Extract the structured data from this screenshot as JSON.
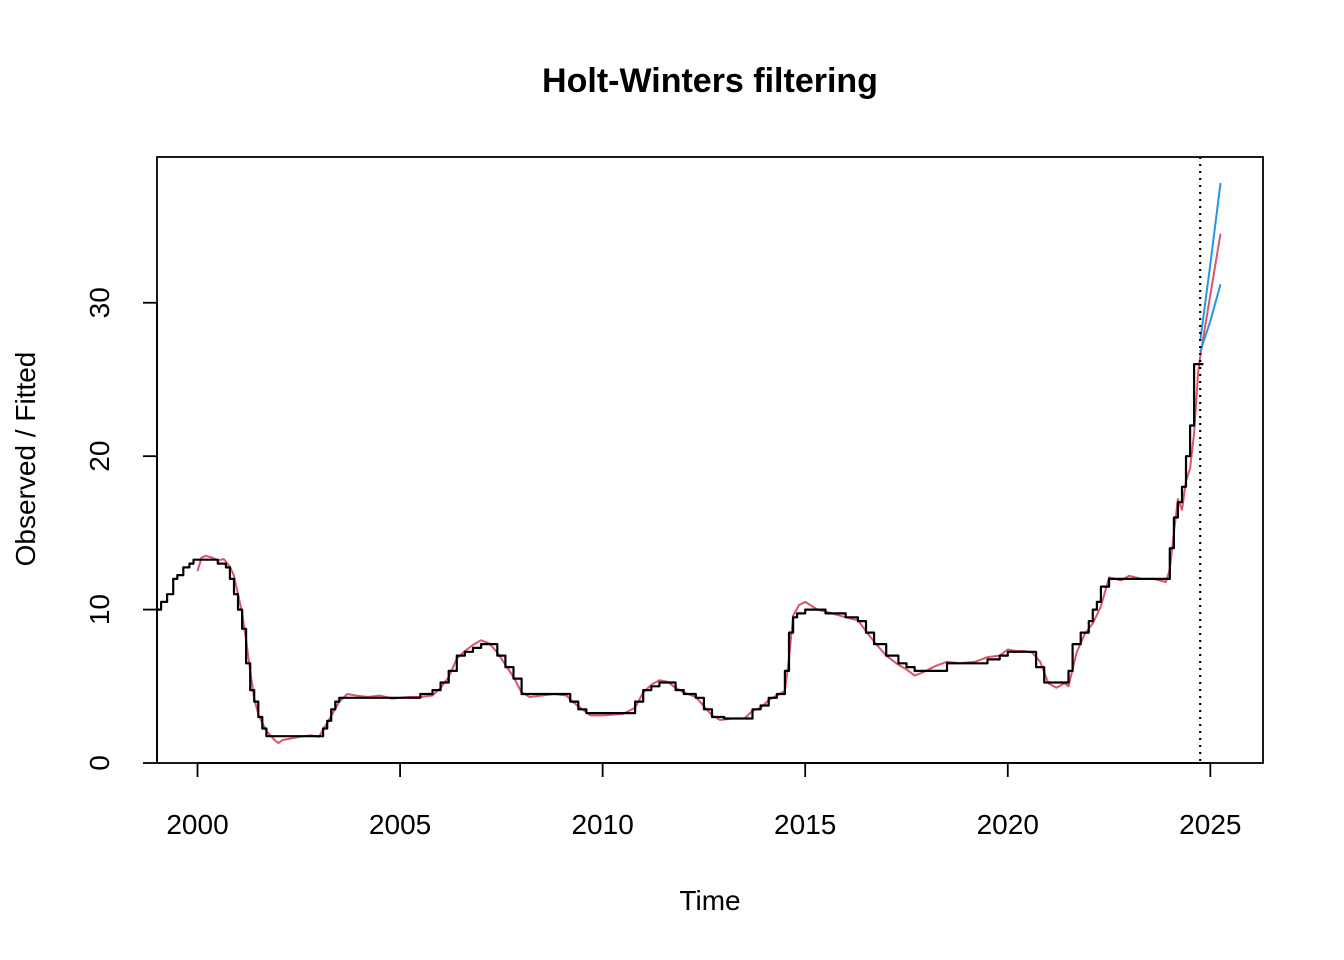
{
  "chart_data": {
    "type": "line",
    "title": "Holt-Winters filtering",
    "xlabel": "Time",
    "ylabel": "Observed / Fitted",
    "xlim": [
      1999,
      2026.3
    ],
    "ylim": [
      0,
      39.5
    ],
    "x_ticks": [
      2000,
      2005,
      2010,
      2015,
      2020,
      2025
    ],
    "x_tick_labels": [
      "2000",
      "2005",
      "2010",
      "2015",
      "2020",
      "2025"
    ],
    "y_ticks": [
      0,
      10,
      20,
      30
    ],
    "y_tick_labels": [
      "0",
      "10",
      "20",
      "30"
    ],
    "grid": false,
    "legend": "none",
    "forecast_start": 2024.75,
    "series": [
      {
        "role": "observed",
        "color": "#000000",
        "step": true,
        "x": [
          1999.0,
          1999.1,
          1999.25,
          1999.4,
          1999.5,
          1999.65,
          1999.8,
          1999.9,
          2000.0,
          2000.3,
          2000.5,
          2000.7,
          2000.8,
          2000.9,
          2001.0,
          2001.1,
          2001.2,
          2001.3,
          2001.4,
          2001.5,
          2001.6,
          2001.7,
          2001.8,
          2001.9,
          2002.0,
          2002.2,
          2002.5,
          2003.0,
          2003.1,
          2003.2,
          2003.3,
          2003.4,
          2003.5,
          2004.0,
          2004.5,
          2005.0,
          2005.5,
          2005.8,
          2006.0,
          2006.2,
          2006.4,
          2006.6,
          2006.8,
          2007.0,
          2007.2,
          2007.4,
          2007.6,
          2007.8,
          2008.0,
          2008.5,
          2009.0,
          2009.2,
          2009.4,
          2009.6,
          2010.0,
          2010.5,
          2010.8,
          2011.0,
          2011.2,
          2011.4,
          2011.6,
          2011.8,
          2012.0,
          2012.3,
          2012.5,
          2012.7,
          2013.0,
          2013.5,
          2013.7,
          2013.9,
          2014.1,
          2014.3,
          2014.5,
          2014.6,
          2014.7,
          2014.8,
          2015.0,
          2015.5,
          2016.0,
          2016.3,
          2016.5,
          2016.7,
          2017.0,
          2017.3,
          2017.5,
          2017.7,
          2018.0,
          2018.5,
          2019.0,
          2019.5,
          2019.8,
          2020.0,
          2020.3,
          2020.5,
          2020.7,
          2020.9,
          2021.2,
          2021.4,
          2021.5,
          2021.6,
          2021.8,
          2022.0,
          2022.1,
          2022.2,
          2022.3,
          2022.5,
          2023.0,
          2023.5,
          2023.9,
          2024.0,
          2024.1,
          2024.2,
          2024.3,
          2024.4,
          2024.5,
          2024.6,
          2024.75
        ],
        "y": [
          10.0,
          10.5,
          11.0,
          12.0,
          12.25,
          12.75,
          13.0,
          13.25,
          13.25,
          13.25,
          13.0,
          12.75,
          12.0,
          11.0,
          10.0,
          8.75,
          6.5,
          4.75,
          4.0,
          3.0,
          2.25,
          1.75,
          1.75,
          1.75,
          1.75,
          1.75,
          1.75,
          1.75,
          2.25,
          2.75,
          3.5,
          4.0,
          4.25,
          4.25,
          4.25,
          4.25,
          4.5,
          4.75,
          5.25,
          6.0,
          7.0,
          7.25,
          7.5,
          7.75,
          7.75,
          7.0,
          6.25,
          5.5,
          4.5,
          4.5,
          4.5,
          4.0,
          3.5,
          3.25,
          3.25,
          3.25,
          4.0,
          4.75,
          5.0,
          5.25,
          5.25,
          4.75,
          4.5,
          4.25,
          3.5,
          3.0,
          2.9,
          2.9,
          3.5,
          3.75,
          4.25,
          4.5,
          6.0,
          8.5,
          9.5,
          9.75,
          10.0,
          9.75,
          9.5,
          9.25,
          8.5,
          7.75,
          7.0,
          6.5,
          6.25,
          6.0,
          6.0,
          6.5,
          6.5,
          6.75,
          7.0,
          7.25,
          7.25,
          7.25,
          6.25,
          5.25,
          5.25,
          5.25,
          6.0,
          7.75,
          8.5,
          9.25,
          10.0,
          10.5,
          11.5,
          12.0,
          12.0,
          12.0,
          12.0,
          14.0,
          16.0,
          17.0,
          18.0,
          20.0,
          22.0,
          26.0,
          26.0
        ]
      },
      {
        "role": "fitted",
        "color": "#DF536B",
        "step": false,
        "x": [
          2000.0,
          2000.1,
          2000.2,
          2000.35,
          2000.5,
          2000.65,
          2000.8,
          2000.9,
          2001.0,
          2001.1,
          2001.2,
          2001.3,
          2001.4,
          2001.5,
          2001.6,
          2001.7,
          2001.8,
          2001.9,
          2002.0,
          2002.1,
          2002.3,
          2002.5,
          2002.8,
          2003.0,
          2003.1,
          2003.2,
          2003.35,
          2003.5,
          2003.7,
          2003.9,
          2004.2,
          2004.5,
          2004.8,
          2005.2,
          2005.5,
          2005.8,
          2006.0,
          2006.2,
          2006.4,
          2006.6,
          2006.8,
          2007.0,
          2007.2,
          2007.4,
          2007.6,
          2007.8,
          2008.0,
          2008.2,
          2008.5,
          2008.8,
          2009.1,
          2009.3,
          2009.5,
          2009.7,
          2010.0,
          2010.5,
          2010.8,
          2011.0,
          2011.2,
          2011.4,
          2011.6,
          2011.8,
          2012.0,
          2012.3,
          2012.5,
          2012.7,
          2012.9,
          2013.2,
          2013.5,
          2013.7,
          2013.9,
          2014.1,
          2014.3,
          2014.5,
          2014.6,
          2014.7,
          2014.85,
          2015.0,
          2015.3,
          2015.6,
          2016.0,
          2016.3,
          2016.5,
          2016.7,
          2017.0,
          2017.3,
          2017.5,
          2017.7,
          2017.9,
          2018.2,
          2018.5,
          2018.8,
          2019.2,
          2019.5,
          2019.8,
          2020.0,
          2020.2,
          2020.4,
          2020.6,
          2020.8,
          2021.0,
          2021.2,
          2021.4,
          2021.5,
          2021.7,
          2021.9,
          2022.1,
          2022.3,
          2022.5,
          2022.8,
          2023.0,
          2023.3,
          2023.6,
          2023.9,
          2024.0,
          2024.1,
          2024.2,
          2024.3,
          2024.4,
          2024.5,
          2024.6,
          2024.7,
          2024.75
        ],
        "y": [
          12.5,
          13.4,
          13.5,
          13.4,
          13.2,
          13.3,
          12.8,
          12.2,
          11.0,
          9.8,
          8.0,
          6.0,
          4.2,
          3.2,
          2.6,
          2.1,
          1.8,
          1.5,
          1.3,
          1.5,
          1.6,
          1.7,
          1.8,
          1.7,
          2.2,
          2.6,
          3.3,
          4.0,
          4.5,
          4.4,
          4.3,
          4.4,
          4.2,
          4.3,
          4.3,
          4.4,
          4.9,
          5.6,
          6.8,
          7.3,
          7.7,
          8.0,
          7.8,
          7.2,
          6.4,
          5.6,
          4.6,
          4.3,
          4.4,
          4.5,
          4.4,
          3.9,
          3.5,
          3.1,
          3.1,
          3.2,
          3.6,
          4.6,
          5.1,
          5.4,
          5.3,
          4.9,
          4.6,
          4.3,
          3.7,
          3.1,
          2.8,
          2.9,
          2.9,
          3.4,
          3.6,
          4.1,
          4.4,
          4.7,
          6.8,
          9.6,
          10.3,
          10.5,
          10.0,
          9.8,
          9.5,
          9.3,
          8.6,
          7.9,
          7.0,
          6.4,
          6.1,
          5.7,
          5.9,
          6.3,
          6.6,
          6.5,
          6.6,
          6.9,
          7.0,
          7.4,
          7.3,
          7.3,
          7.2,
          6.6,
          5.2,
          4.9,
          5.2,
          5.0,
          7.2,
          8.4,
          9.1,
          10.2,
          12.1,
          11.9,
          12.2,
          12.0,
          12.0,
          11.8,
          12.6,
          15.0,
          17.2,
          16.5,
          18.4,
          19.2,
          21.5,
          25.5,
          26.5
        ]
      },
      {
        "role": "forecast",
        "color": "#DF536B",
        "step": false,
        "x": [
          2024.75,
          2025.0,
          2025.25
        ],
        "y": [
          26.5,
          30.5,
          34.5
        ]
      },
      {
        "role": "upper-bound",
        "color": "#2297E6",
        "step": false,
        "x": [
          2024.75,
          2025.0,
          2025.25
        ],
        "y": [
          27.5,
          32.5,
          37.8
        ]
      },
      {
        "role": "lower-bound",
        "color": "#2297E6",
        "step": false,
        "x": [
          2024.75,
          2025.0,
          2025.25
        ],
        "y": [
          26.8,
          28.8,
          31.2
        ]
      }
    ]
  }
}
